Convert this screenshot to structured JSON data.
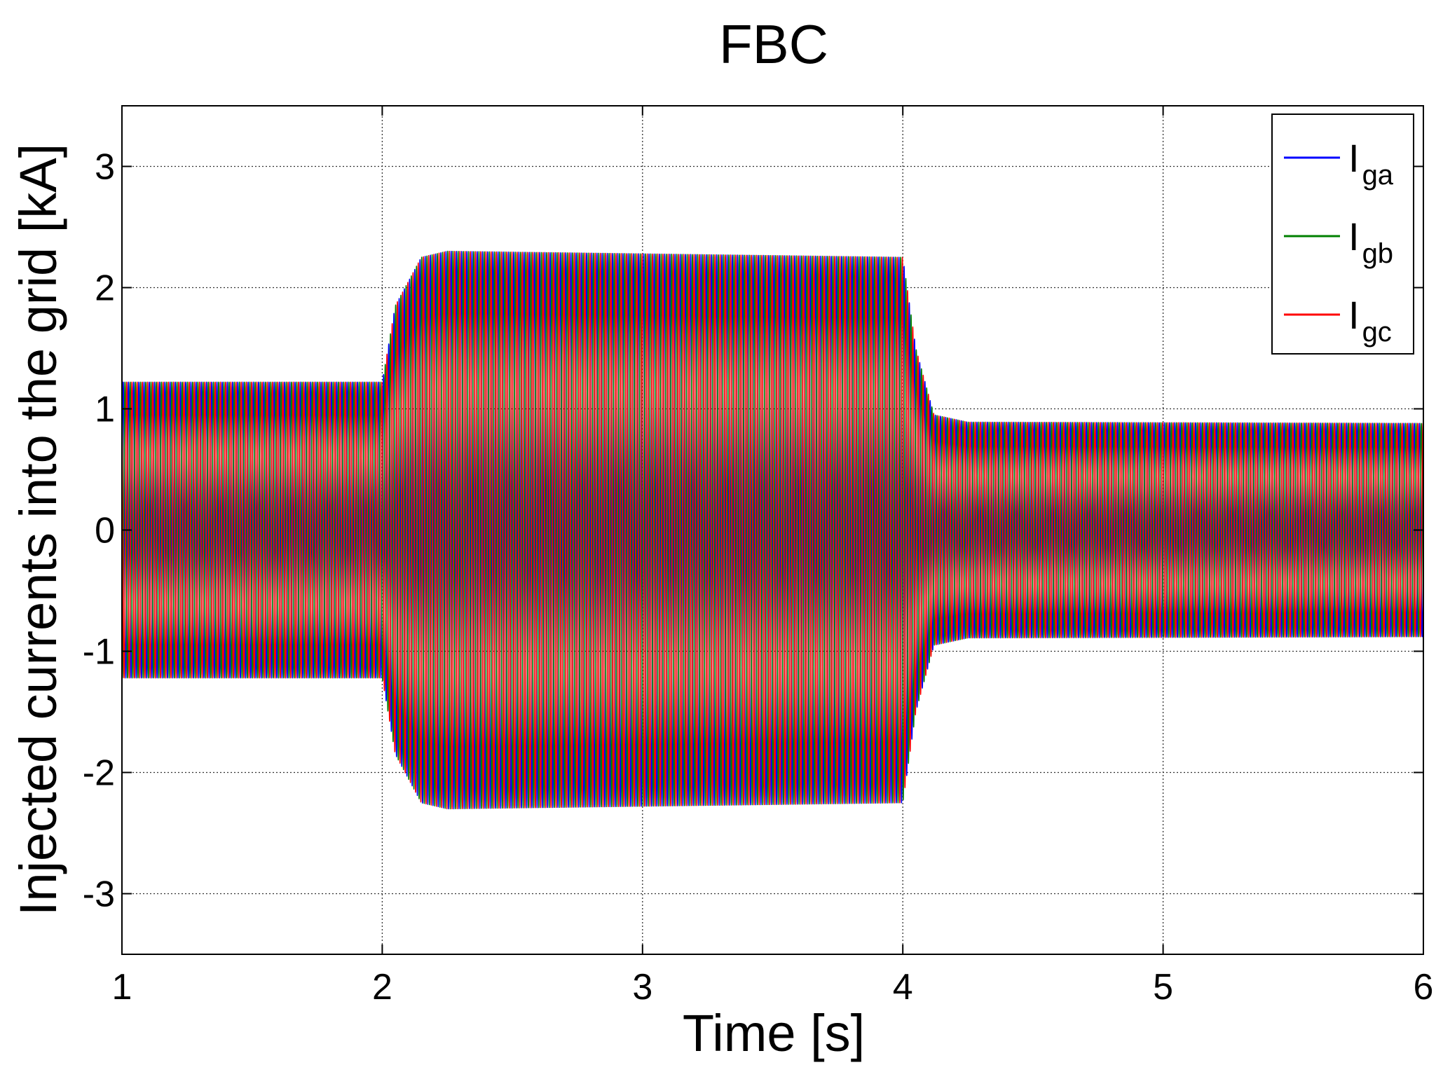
{
  "chart_data": {
    "type": "line",
    "title": "FBC",
    "xlabel": "Time [s]",
    "ylabel": "Injected currents into the grid [kA]",
    "xlim": [
      1,
      6
    ],
    "ylim": [
      -3.5,
      3.5
    ],
    "xticks": [
      1,
      2,
      3,
      4,
      5,
      6
    ],
    "yticks": [
      -3,
      -2,
      -1,
      0,
      1,
      2,
      3
    ],
    "xtick_labels": [
      "1",
      "2",
      "3",
      "4",
      "5",
      "6"
    ],
    "ytick_labels": [
      "-3",
      "-2",
      "-1",
      "0",
      "1",
      "2",
      "3"
    ],
    "grid": true,
    "grid_style": "dotted",
    "legend_position": "top-right",
    "frequency_hz": 50,
    "series": [
      {
        "name": "I",
        "subscript": "ga",
        "color": "#0000ff",
        "phase_deg": 0
      },
      {
        "name": "I",
        "subscript": "gb",
        "color": "#008000",
        "phase_deg": -120
      },
      {
        "name": "I",
        "subscript": "gc",
        "color": "#ff0000",
        "phase_deg": 120
      }
    ],
    "amplitude_envelope": [
      {
        "t": 1.0,
        "amp": 1.22
      },
      {
        "t": 2.0,
        "amp": 1.22
      },
      {
        "t": 2.05,
        "amp": 1.85
      },
      {
        "t": 2.15,
        "amp": 2.25
      },
      {
        "t": 2.25,
        "amp": 2.3
      },
      {
        "t": 4.0,
        "amp": 2.25
      },
      {
        "t": 4.05,
        "amp": 1.5
      },
      {
        "t": 4.12,
        "amp": 0.95
      },
      {
        "t": 4.25,
        "amp": 0.89
      },
      {
        "t": 6.0,
        "amp": 0.88
      }
    ]
  }
}
